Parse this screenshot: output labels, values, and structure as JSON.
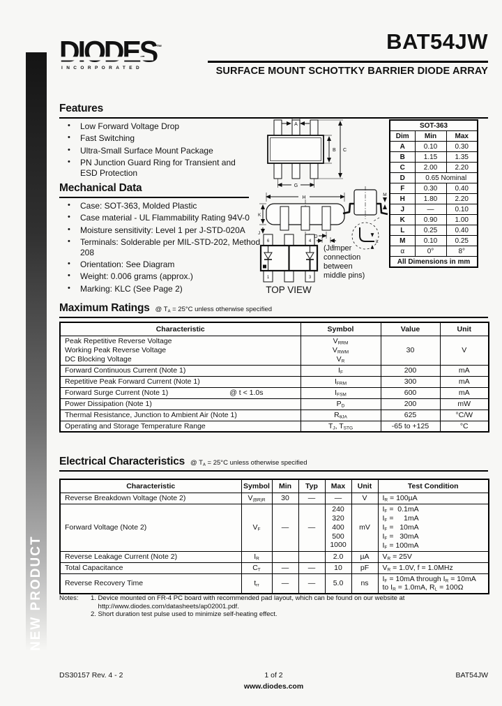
{
  "sidebar": {
    "label": "NEW PRODUCT"
  },
  "header": {
    "logo_text": "DIODES",
    "logo_tm": "™",
    "logo_sub": "INCORPORATED",
    "part_number": "BAT54JW",
    "subtitle": "SURFACE MOUNT SCHOTTKY BARRIER DIODE ARRAY"
  },
  "features": {
    "title": "Features",
    "items": [
      "Low Forward Voltage Drop",
      "Fast Switching",
      "Ultra-Small Surface Mount Package",
      "PN Junction Guard Ring for Transient and ESD Protection"
    ]
  },
  "mechanical": {
    "title": "Mechanical Data",
    "items": [
      "Case: SOT-363, Molded Plastic",
      "Case material - UL Flammability Rating 94V-0",
      "Moisture sensitivity: Level 1 per J-STD-020A",
      "Terminals: Solderable per MIL-STD-202, Method 208",
      "Orientation: See Diagram",
      "Weight: 0.006 grams (approx.)",
      "Marking: KLC (See Page 2)"
    ]
  },
  "diagram": {
    "labels": {
      "a": "A",
      "b": "B",
      "c": "C",
      "g": "G",
      "h": "H",
      "k": "K",
      "j": "J",
      "d": "D",
      "f": "F",
      "m": "M",
      "l": "L"
    },
    "pins": {
      "top_left": "6",
      "top_right": "4",
      "bottom_left": "1",
      "bottom_right": "3"
    },
    "top_view_caption": "TOP VIEW",
    "jumper_note_lines": [
      "(Jumper",
      "connection",
      "between",
      "middle pins)"
    ]
  },
  "dim_table": {
    "title": "SOT-363",
    "headers": [
      "Dim",
      "Min",
      "Max"
    ],
    "rows": [
      {
        "dim": "A",
        "min": "0.10",
        "max": "0.30"
      },
      {
        "dim": "B",
        "min": "1.15",
        "max": "1.35"
      },
      {
        "dim": "C",
        "min": "2.00",
        "max": "2.20"
      },
      {
        "dim": "D",
        "span": "0.65 Nominal"
      },
      {
        "dim": "F",
        "min": "0.30",
        "max": "0.40"
      },
      {
        "dim": "H",
        "min": "1.80",
        "max": "2.20"
      },
      {
        "dim": "J",
        "min": "—",
        "max": "0.10"
      },
      {
        "dim": "K",
        "min": "0.90",
        "max": "1.00"
      },
      {
        "dim": "L",
        "min": "0.25",
        "max": "0.40"
      },
      {
        "dim": "M",
        "min": "0.10",
        "max": "0.25"
      },
      {
        "dim": "α",
        "min": "0°",
        "max": "8°"
      }
    ],
    "footer": "All Dimensions in mm"
  },
  "max_ratings": {
    "title": "Maximum Ratings",
    "condition": [
      {
        "t": "@ T"
      },
      {
        "s": "A"
      },
      {
        "t": " = 25°C unless otherwise specified"
      }
    ],
    "headers": [
      "Characteristic",
      "Symbol",
      "Value",
      "Unit"
    ],
    "rows": [
      {
        "characteristic_lines": [
          "Peak Repetitive Reverse Voltage",
          "Working Peak Reverse Voltage",
          "DC Blocking Voltage"
        ],
        "symbol_lines": [
          [
            {
              "t": "V"
            },
            {
              "s": "RRM"
            }
          ],
          [
            {
              "t": "V"
            },
            {
              "s": "RWM"
            }
          ],
          [
            {
              "t": "V"
            },
            {
              "s": "R"
            }
          ]
        ],
        "value": "30",
        "unit": "V"
      },
      {
        "characteristic": "Forward Continuous Current  (Note 1)",
        "symbol": [
          {
            "t": "I"
          },
          {
            "s": "F"
          }
        ],
        "value": "200",
        "unit": "mA"
      },
      {
        "characteristic": "Repetitive Peak Forward Current  (Note 1)",
        "symbol": [
          {
            "t": "I"
          },
          {
            "s": "FRM"
          }
        ],
        "value": "300",
        "unit": "mA"
      },
      {
        "characteristic": "Forward Surge Current (Note 1)",
        "characteristic_right": "@ t < 1.0s",
        "symbol": [
          {
            "t": "I"
          },
          {
            "s": "FSM"
          }
        ],
        "value": "600",
        "unit": "mA"
      },
      {
        "characteristic": "Power Dissipation (Note 1)",
        "symbol": [
          {
            "t": "P"
          },
          {
            "s": "D"
          }
        ],
        "value": "200",
        "unit": "mW"
      },
      {
        "characteristic": "Thermal Resistance, Junction to Ambient Air (Note 1)",
        "symbol": [
          {
            "t": "R"
          },
          {
            "s": "θJA"
          }
        ],
        "value": "625",
        "unit": "°C/W"
      },
      {
        "characteristic": "Operating and Storage Temperature Range",
        "symbol": [
          {
            "t": "T"
          },
          {
            "s": "J"
          },
          {
            "t": ", T"
          },
          {
            "s": "STG"
          }
        ],
        "value": "-65 to +125",
        "unit": "°C"
      }
    ]
  },
  "electrical": {
    "title": "Electrical Characteristics",
    "condition": [
      {
        "t": "@ T"
      },
      {
        "s": "A"
      },
      {
        "t": " = 25°C unless otherwise specified"
      }
    ],
    "headers": [
      "Characteristic",
      "Symbol",
      "Min",
      "Typ",
      "Max",
      "Unit",
      "Test Condition"
    ],
    "rows": [
      {
        "characteristic": "Reverse Breakdown Voltage (Note 2)",
        "symbol": [
          {
            "t": "V"
          },
          {
            "s": "(BR)R"
          }
        ],
        "min": "30",
        "typ": "—",
        "max": "—",
        "unit": "V",
        "cond": [
          [
            {
              "t": "I"
            },
            {
              "s": "R"
            },
            {
              "t": " = 100µA"
            }
          ]
        ]
      },
      {
        "characteristic": "Forward Voltage (Note 2)",
        "symbol": [
          {
            "t": "V"
          },
          {
            "s": "F"
          }
        ],
        "min": "—",
        "typ": "—",
        "max_lines": [
          "240",
          "320",
          "400",
          "500",
          "1000"
        ],
        "unit": "mV",
        "cond": [
          [
            {
              "t": "I"
            },
            {
              "s": "F"
            },
            {
              "t": " =  0.1mA"
            }
          ],
          [
            {
              "t": "I"
            },
            {
              "s": "F"
            },
            {
              "t": " =     1mA"
            }
          ],
          [
            {
              "t": "I"
            },
            {
              "s": "F"
            },
            {
              "t": " =   10mA"
            }
          ],
          [
            {
              "t": "I"
            },
            {
              "s": "F"
            },
            {
              "t": " =   30mA"
            }
          ],
          [
            {
              "t": "I"
            },
            {
              "s": "F"
            },
            {
              "t": " = 100mA"
            }
          ]
        ]
      },
      {
        "characteristic": "Reverse Leakage Current (Note 2)",
        "symbol": [
          {
            "t": "I"
          },
          {
            "s": "R"
          }
        ],
        "min": "",
        "typ": "",
        "max": "2.0",
        "unit": "µA",
        "cond": [
          [
            {
              "t": "V"
            },
            {
              "s": "R"
            },
            {
              "t": " = 25V"
            }
          ]
        ]
      },
      {
        "characteristic": "Total Capacitance",
        "symbol": [
          {
            "t": "C"
          },
          {
            "s": "T"
          }
        ],
        "min": "—",
        "typ": "—",
        "max": "10",
        "unit": "pF",
        "cond": [
          [
            {
              "t": "V"
            },
            {
              "s": "R"
            },
            {
              "t": " = 1.0V, f = 1.0MHz"
            }
          ]
        ]
      },
      {
        "characteristic": "Reverse Recovery Time",
        "symbol": [
          {
            "t": "t"
          },
          {
            "s": "rr"
          }
        ],
        "min": "—",
        "typ": "—",
        "max": "5.0",
        "unit": "ns",
        "cond": [
          [
            {
              "t": "I"
            },
            {
              "s": "F"
            },
            {
              "t": " = 10mA through I"
            },
            {
              "s": "R"
            },
            {
              "t": " = 10mA"
            }
          ],
          [
            {
              "t": "to I"
            },
            {
              "s": "R"
            },
            {
              "t": " = 1.0mA, R"
            },
            {
              "s": "L"
            },
            {
              "t": " = 100Ω"
            }
          ]
        ]
      }
    ]
  },
  "notes": {
    "label": "Notes:",
    "lines": [
      "1. Device mounted on FR-4 PC board with recommended pad layout, which can be found on our website at",
      "    http://www.diodes.com/datasheets/ap02001.pdf.",
      "2. Short duration test pulse used to minimize self-heating effect."
    ]
  },
  "footer": {
    "doc_id": "DS30157 Rev. 4 - 2",
    "page": "1 of 2",
    "website": "www.diodes.com",
    "part": "BAT54JW"
  }
}
